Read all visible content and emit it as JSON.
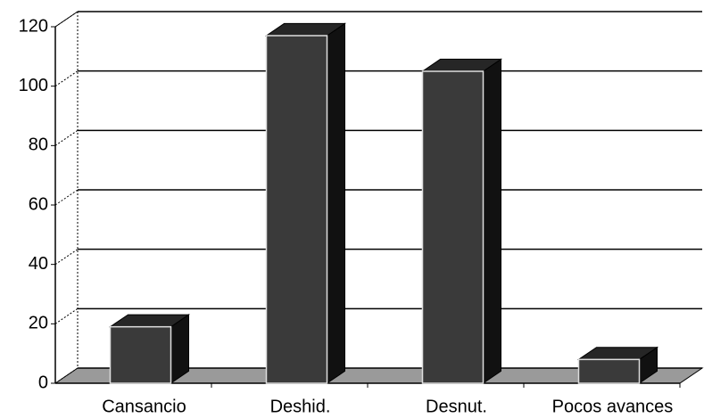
{
  "chart_data": {
    "type": "bar3d",
    "categories": [
      "Cansancio",
      "Deshid.",
      "Desnut.",
      "Pocos avances"
    ],
    "values": [
      19,
      117,
      105,
      8
    ],
    "color": "#3a3a3a",
    "ylim": [
      0,
      120
    ],
    "yticks": [
      0,
      20,
      40,
      60,
      80,
      100,
      120
    ],
    "grid": true
  }
}
